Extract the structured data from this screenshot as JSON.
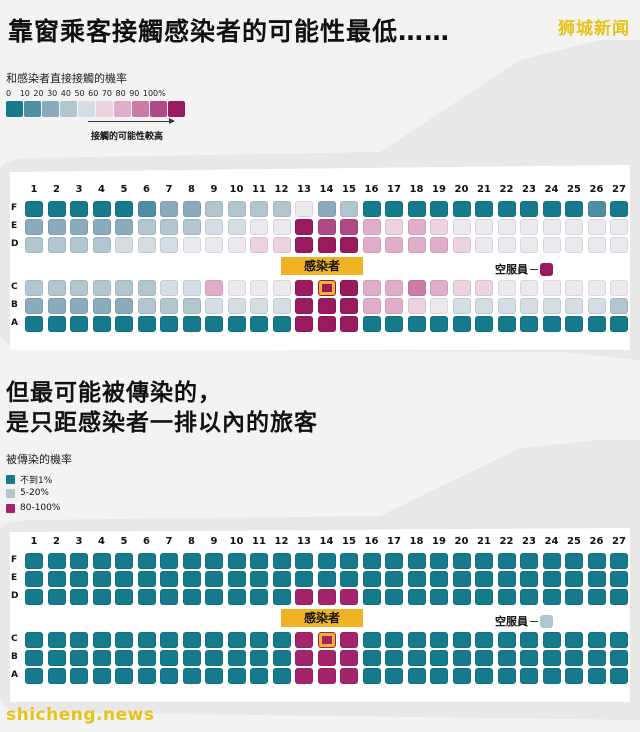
{
  "header": {
    "title": "靠窗乘客接觸感染者的可能性最低……",
    "brand": "狮城新闻"
  },
  "legend1": {
    "title": "和感染者直接接觸的機率",
    "scale_labels": [
      "0",
      "10",
      "20",
      "30",
      "40",
      "50",
      "60",
      "70",
      "80",
      "90",
      "100%"
    ],
    "scale_colors": [
      "#147a8c",
      "#4f8fa3",
      "#8aabbb",
      "#b2c6d0",
      "#d3dde3",
      "#ece9ee",
      "#ecd3e1",
      "#e0aecb",
      "#cc7aa8",
      "#b04a84",
      "#9a1a5e"
    ],
    "note": "接觸的可能性較高"
  },
  "section2": {
    "title_line1": "但最可能被傳染的，",
    "title_line2": "是只距感染者一排以內的旅客",
    "legend_title": "被傳染的機率",
    "legend_items": [
      {
        "label": "不到1%",
        "color": "#147a8c"
      },
      {
        "label": "5-20%",
        "color": "#b2c6d0"
      },
      {
        "label": "80-100%",
        "color": "#a3246a"
      }
    ]
  },
  "cabin": {
    "rows": [
      "1",
      "2",
      "3",
      "4",
      "5",
      "6",
      "7",
      "8",
      "9",
      "10",
      "11",
      "12",
      "13",
      "14",
      "15",
      "16",
      "17",
      "18",
      "19",
      "20",
      "21",
      "22",
      "23",
      "24",
      "25",
      "26",
      "27"
    ],
    "letters_top": [
      "F",
      "E",
      "D"
    ],
    "letters_bottom": [
      "C",
      "B",
      "A"
    ],
    "infected_label": "感染者",
    "crew_label": "空服員"
  },
  "plane1_seats": {
    "F": [
      0,
      0,
      0,
      0,
      0,
      1,
      2,
      2,
      3,
      3,
      3,
      3,
      5,
      2,
      3,
      0,
      0,
      0,
      0,
      0,
      0,
      0,
      0,
      0,
      0,
      1,
      0
    ],
    "E": [
      2,
      2,
      2,
      2,
      2,
      3,
      3,
      3,
      4,
      4,
      5,
      5,
      10,
      9,
      9,
      7,
      6,
      7,
      6,
      5,
      5,
      5,
      5,
      5,
      5,
      5,
      5
    ],
    "D": [
      3,
      3,
      3,
      3,
      4,
      4,
      4,
      5,
      5,
      5,
      6,
      6,
      10,
      10,
      10,
      7,
      7,
      7,
      7,
      6,
      5,
      5,
      5,
      5,
      5,
      5,
      5
    ],
    "C": [
      3,
      3,
      3,
      3,
      3,
      3,
      4,
      4,
      7,
      5,
      5,
      5,
      10,
      10,
      10,
      7,
      7,
      8,
      7,
      6,
      6,
      5,
      5,
      5,
      5,
      5,
      5
    ],
    "B": [
      2,
      2,
      2,
      2,
      2,
      3,
      3,
      3,
      4,
      4,
      4,
      4,
      10,
      10,
      10,
      7,
      7,
      6,
      5,
      4,
      4,
      4,
      4,
      4,
      4,
      4,
      3
    ],
    "A": [
      0,
      0,
      0,
      0,
      0,
      0,
      0,
      0,
      0,
      0,
      0,
      0,
      10,
      10,
      10,
      0,
      0,
      0,
      0,
      0,
      0,
      0,
      0,
      0,
      0,
      0,
      0
    ],
    "crew_level": 10
  },
  "plane2_seats": {
    "F": [
      0,
      0,
      0,
      0,
      0,
      0,
      0,
      0,
      0,
      0,
      0,
      0,
      0,
      0,
      0,
      0,
      0,
      0,
      0,
      0,
      0,
      0,
      0,
      0,
      0,
      0,
      0
    ],
    "E": [
      0,
      0,
      0,
      0,
      0,
      0,
      0,
      0,
      0,
      0,
      0,
      0,
      0,
      0,
      0,
      0,
      0,
      0,
      0,
      0,
      0,
      0,
      0,
      0,
      0,
      0,
      0
    ],
    "D": [
      0,
      0,
      0,
      0,
      0,
      0,
      0,
      0,
      0,
      0,
      0,
      0,
      2,
      2,
      2,
      0,
      0,
      0,
      0,
      0,
      0,
      0,
      0,
      0,
      0,
      0,
      0
    ],
    "C": [
      0,
      0,
      0,
      0,
      0,
      0,
      0,
      0,
      0,
      0,
      0,
      0,
      2,
      2,
      2,
      0,
      0,
      0,
      0,
      0,
      0,
      0,
      0,
      0,
      0,
      0,
      0
    ],
    "B": [
      0,
      0,
      0,
      0,
      0,
      0,
      0,
      0,
      0,
      0,
      0,
      0,
      2,
      2,
      2,
      0,
      0,
      0,
      0,
      0,
      0,
      0,
      0,
      0,
      0,
      0,
      0
    ],
    "A": [
      0,
      0,
      0,
      0,
      0,
      0,
      0,
      0,
      0,
      0,
      0,
      0,
      2,
      2,
      2,
      0,
      0,
      0,
      0,
      0,
      0,
      0,
      0,
      0,
      0,
      0,
      0
    ],
    "crew_level": 1
  },
  "footer": {
    "watermark": "shicheng.news"
  }
}
